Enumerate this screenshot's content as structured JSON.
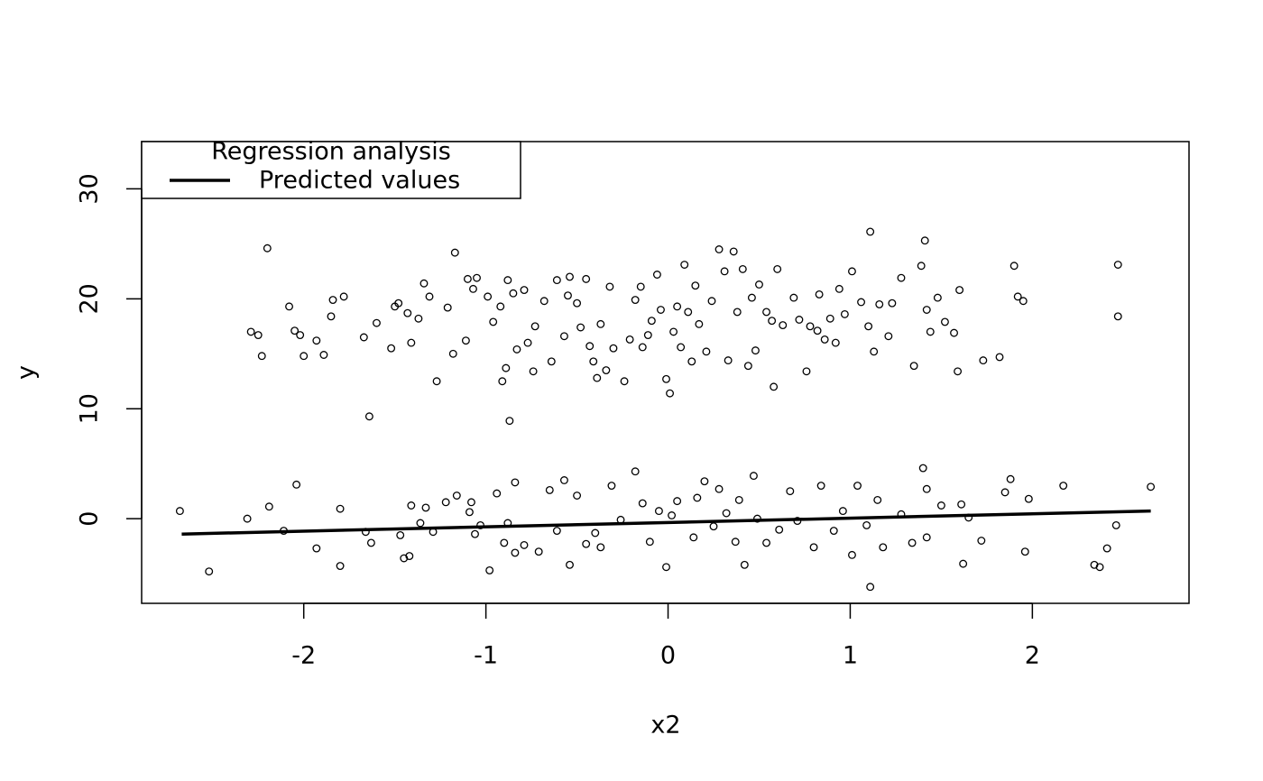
{
  "chart_data": {
    "type": "scatter",
    "x_label": "x2",
    "y_label": "y",
    "xlim": [
      -2.89,
      2.86
    ],
    "ylim": [
      -7.7,
      34.3
    ],
    "xticks": [
      -2,
      -1,
      0,
      1,
      2
    ],
    "yticks": [
      0,
      10,
      20,
      30
    ],
    "legend_title": "Regression analysis",
    "legend_position": "top-left",
    "series": [
      {
        "color": "#000000",
        "x": [
          -2.29,
          -2.25,
          -2.23,
          -2.2,
          -2.08,
          -2.05,
          -2.02,
          -2.0,
          -1.93,
          -1.89,
          -1.85,
          -1.84,
          -1.78,
          -1.67,
          -1.64,
          -1.6,
          -1.52,
          -1.5,
          -1.48,
          -1.43,
          -1.41,
          -1.37,
          -1.34,
          -1.31,
          -1.27,
          -1.21,
          -1.18,
          -1.17,
          -1.11,
          -1.1,
          -1.07,
          -1.05,
          -0.99,
          -0.96,
          -0.92,
          -0.91,
          -0.89,
          -0.88,
          -0.87,
          -0.85,
          -0.83,
          -0.79,
          -0.77,
          -0.74,
          -0.73,
          -0.68,
          -0.64,
          -0.61,
          -0.57,
          -0.55,
          -0.54,
          -0.5,
          -0.48,
          -0.45,
          -0.43,
          -0.41,
          -0.39,
          -0.37,
          -0.34,
          -0.32,
          -0.3,
          -0.24,
          -0.21,
          -0.18,
          -0.15,
          -0.14,
          -0.11,
          -0.09,
          -0.06,
          -0.04,
          -0.01,
          0.01,
          0.03,
          0.05,
          0.07,
          0.09,
          0.11,
          0.13,
          0.15,
          0.17,
          0.21,
          0.24,
          0.28,
          0.31,
          0.33,
          0.36,
          0.38,
          0.41,
          0.44,
          0.46,
          0.48,
          0.5,
          0.54,
          0.57,
          0.58,
          0.6,
          0.63,
          0.69,
          0.72,
          0.76,
          0.78,
          0.82,
          0.83,
          0.86,
          0.89,
          0.92,
          0.94,
          0.97,
          1.01,
          1.06,
          1.1,
          1.11,
          1.13,
          1.16,
          1.21,
          1.23,
          1.28,
          1.35,
          1.39,
          1.41,
          1.42,
          1.44,
          1.48,
          1.52,
          1.57,
          1.59,
          1.6,
          1.73,
          1.82,
          1.9,
          1.92,
          1.95,
          2.47,
          2.47,
          -2.68,
          -2.52,
          -2.31,
          -2.19,
          -2.11,
          -2.04,
          -1.93,
          -1.8,
          -1.8,
          -1.66,
          -1.63,
          -1.47,
          -1.45,
          -1.42,
          -1.41,
          -1.36,
          -1.33,
          -1.29,
          -1.22,
          -1.16,
          -1.09,
          -1.08,
          -1.06,
          -1.03,
          -0.98,
          -0.94,
          -0.9,
          -0.88,
          -0.84,
          -0.84,
          -0.79,
          -0.71,
          -0.65,
          -0.61,
          -0.57,
          -0.54,
          -0.5,
          -0.45,
          -0.4,
          -0.37,
          -0.31,
          -0.26,
          -0.18,
          -0.14,
          -0.1,
          -0.05,
          -0.01,
          0.02,
          0.05,
          0.14,
          0.16,
          0.2,
          0.25,
          0.28,
          0.32,
          0.37,
          0.39,
          0.42,
          0.47,
          0.49,
          0.54,
          0.61,
          0.67,
          0.71,
          0.8,
          0.84,
          0.91,
          0.96,
          1.01,
          1.04,
          1.09,
          1.11,
          1.15,
          1.18,
          1.28,
          1.34,
          1.4,
          1.42,
          1.42,
          1.5,
          1.61,
          1.62,
          1.65,
          1.72,
          1.85,
          1.88,
          1.96,
          1.98,
          2.17,
          2.34,
          2.37,
          2.41,
          2.46,
          2.65
        ],
        "values": [
          17.0,
          16.7,
          14.8,
          24.6,
          19.3,
          17.1,
          16.7,
          14.8,
          16.2,
          14.9,
          18.4,
          19.9,
          20.2,
          16.5,
          9.3,
          17.8,
          15.5,
          19.3,
          19.6,
          18.7,
          16.0,
          18.2,
          21.4,
          20.2,
          12.5,
          19.2,
          15.0,
          24.2,
          16.2,
          21.8,
          20.9,
          21.9,
          20.2,
          17.9,
          19.3,
          12.5,
          13.7,
          21.7,
          8.9,
          20.5,
          15.4,
          20.8,
          16.0,
          13.4,
          17.5,
          19.8,
          14.3,
          21.7,
          16.6,
          20.3,
          22.0,
          19.6,
          17.4,
          21.8,
          15.7,
          14.3,
          12.8,
          17.7,
          13.5,
          21.1,
          15.5,
          12.5,
          16.3,
          19.9,
          21.1,
          15.6,
          16.7,
          18.0,
          22.2,
          19.0,
          12.7,
          11.4,
          17.0,
          19.3,
          15.6,
          23.1,
          18.8,
          14.3,
          21.2,
          17.7,
          15.2,
          19.8,
          24.5,
          22.5,
          14.4,
          24.3,
          18.8,
          22.7,
          13.9,
          20.1,
          15.3,
          21.3,
          18.8,
          18.0,
          12.0,
          22.7,
          17.6,
          20.1,
          18.1,
          13.4,
          17.5,
          17.1,
          20.4,
          16.3,
          18.2,
          16.0,
          20.9,
          18.6,
          22.5,
          19.7,
          17.5,
          26.1,
          15.2,
          19.5,
          16.6,
          19.6,
          21.9,
          13.9,
          23.0,
          25.3,
          19.0,
          17.0,
          20.1,
          17.9,
          16.9,
          13.4,
          20.8,
          14.4,
          14.7,
          23.0,
          20.2,
          19.8,
          23.1,
          18.4,
          0.7,
          -4.8,
          0.0,
          1.1,
          -1.1,
          3.1,
          -2.7,
          0.9,
          -4.3,
          -1.2,
          -2.2,
          -1.5,
          -3.6,
          -3.4,
          1.2,
          -0.4,
          1.0,
          -1.2,
          1.5,
          2.1,
          0.6,
          1.5,
          -1.4,
          -0.6,
          -4.7,
          2.3,
          -2.2,
          -0.4,
          3.3,
          -3.1,
          -2.4,
          -3.0,
          2.6,
          -1.1,
          3.5,
          -4.2,
          2.1,
          -2.3,
          -1.3,
          -2.6,
          3.0,
          -0.1,
          4.3,
          1.4,
          -2.1,
          0.7,
          -4.4,
          0.3,
          1.6,
          -1.7,
          1.9,
          3.4,
          -0.7,
          2.7,
          0.5,
          -2.1,
          1.7,
          -4.2,
          3.9,
          0.0,
          -2.2,
          -1.0,
          2.5,
          -0.2,
          -2.6,
          3.0,
          -1.1,
          0.7,
          -3.3,
          3.0,
          -0.6,
          -6.2,
          1.7,
          -2.6,
          0.4,
          -2.2,
          4.6,
          2.7,
          -1.7,
          1.2,
          1.3,
          -4.1,
          0.1,
          -2.0,
          2.4,
          3.6,
          -3.0,
          1.8,
          3.0,
          -4.2,
          -4.4,
          -2.7,
          -0.6,
          2.9
        ]
      }
    ],
    "line": {
      "name": "Predicted values",
      "color": "#000000",
      "x": [
        -2.67,
        2.65
      ],
      "values": [
        -1.4,
        0.7
      ]
    }
  }
}
